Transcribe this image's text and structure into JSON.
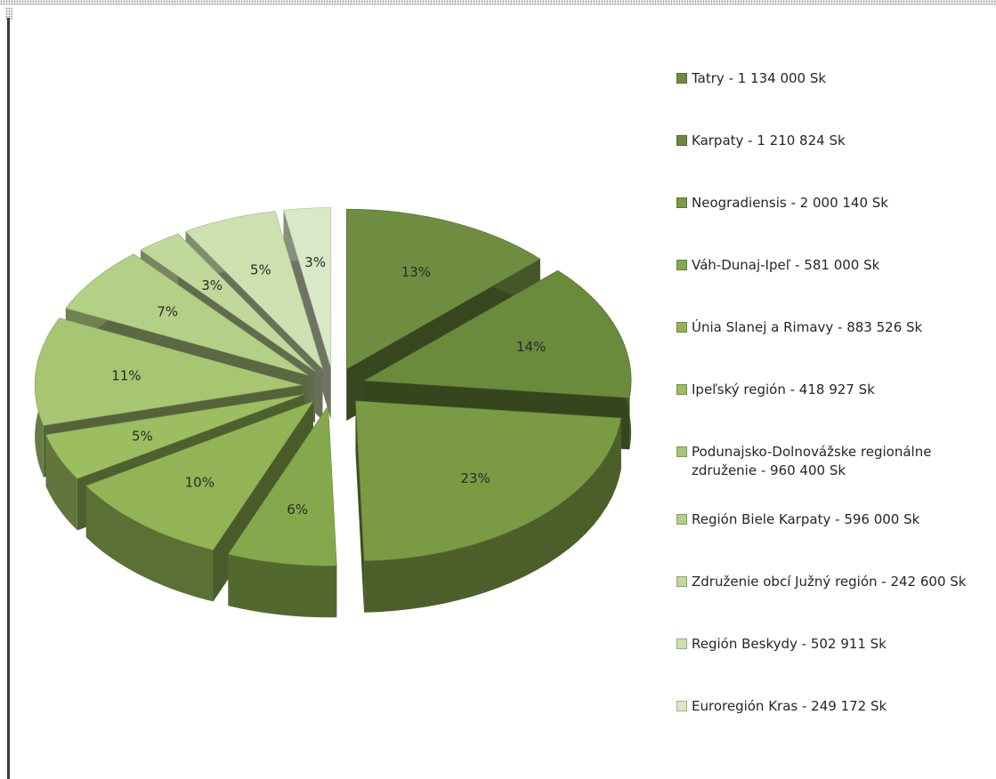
{
  "chart_data": {
    "type": "pie",
    "title": "",
    "slices": [
      {
        "label": "Tatry - 1 134 000 Sk",
        "value": 1134000,
        "pct_label": "13%",
        "color": "#6f8d40"
      },
      {
        "label": "Karpaty - 1 210 824 Sk",
        "value": 1210824,
        "pct_label": "14%",
        "color": "#6a8a3c"
      },
      {
        "label": "Neogradiensis - 2 000 140 Sk",
        "value": 2000140,
        "pct_label": "23%",
        "color": "#7a9a44"
      },
      {
        "label": "Váh-Dunaj-Ipeľ - 581 000 Sk",
        "value": 581000,
        "pct_label": "6%",
        "color": "#86a84c"
      },
      {
        "label": "Únia Slanej a Rimavy - 883 526 Sk",
        "value": 883526,
        "pct_label": "10%",
        "color": "#92b456"
      },
      {
        "label": "Ipeľský región - 418 927 Sk",
        "value": 418927,
        "pct_label": "5%",
        "color": "#9cbd60"
      },
      {
        "label": "Podunajsko-Dolnovážske regionálne združenie - 960 400 Sk",
        "value": 960400,
        "pct_label": "11%",
        "color": "#a8c672"
      },
      {
        "label": "Región Biele Karpaty - 596 000 Sk",
        "value": 596000,
        "pct_label": "7%",
        "color": "#b4cf86"
      },
      {
        "label": "Združenie obcí Južný región - 242 600 Sk",
        "value": 242600,
        "pct_label": "3%",
        "color": "#c1d89b"
      },
      {
        "label": "Región Beskydy - 502 911 Sk",
        "value": 502911,
        "pct_label": "5%",
        "color": "#cde1b0"
      },
      {
        "label": "Euroregión Kras - 249 172 Sk",
        "value": 249172,
        "pct_label": "3%",
        "color": "#d9e8c6"
      }
    ],
    "legend_position": "right"
  }
}
